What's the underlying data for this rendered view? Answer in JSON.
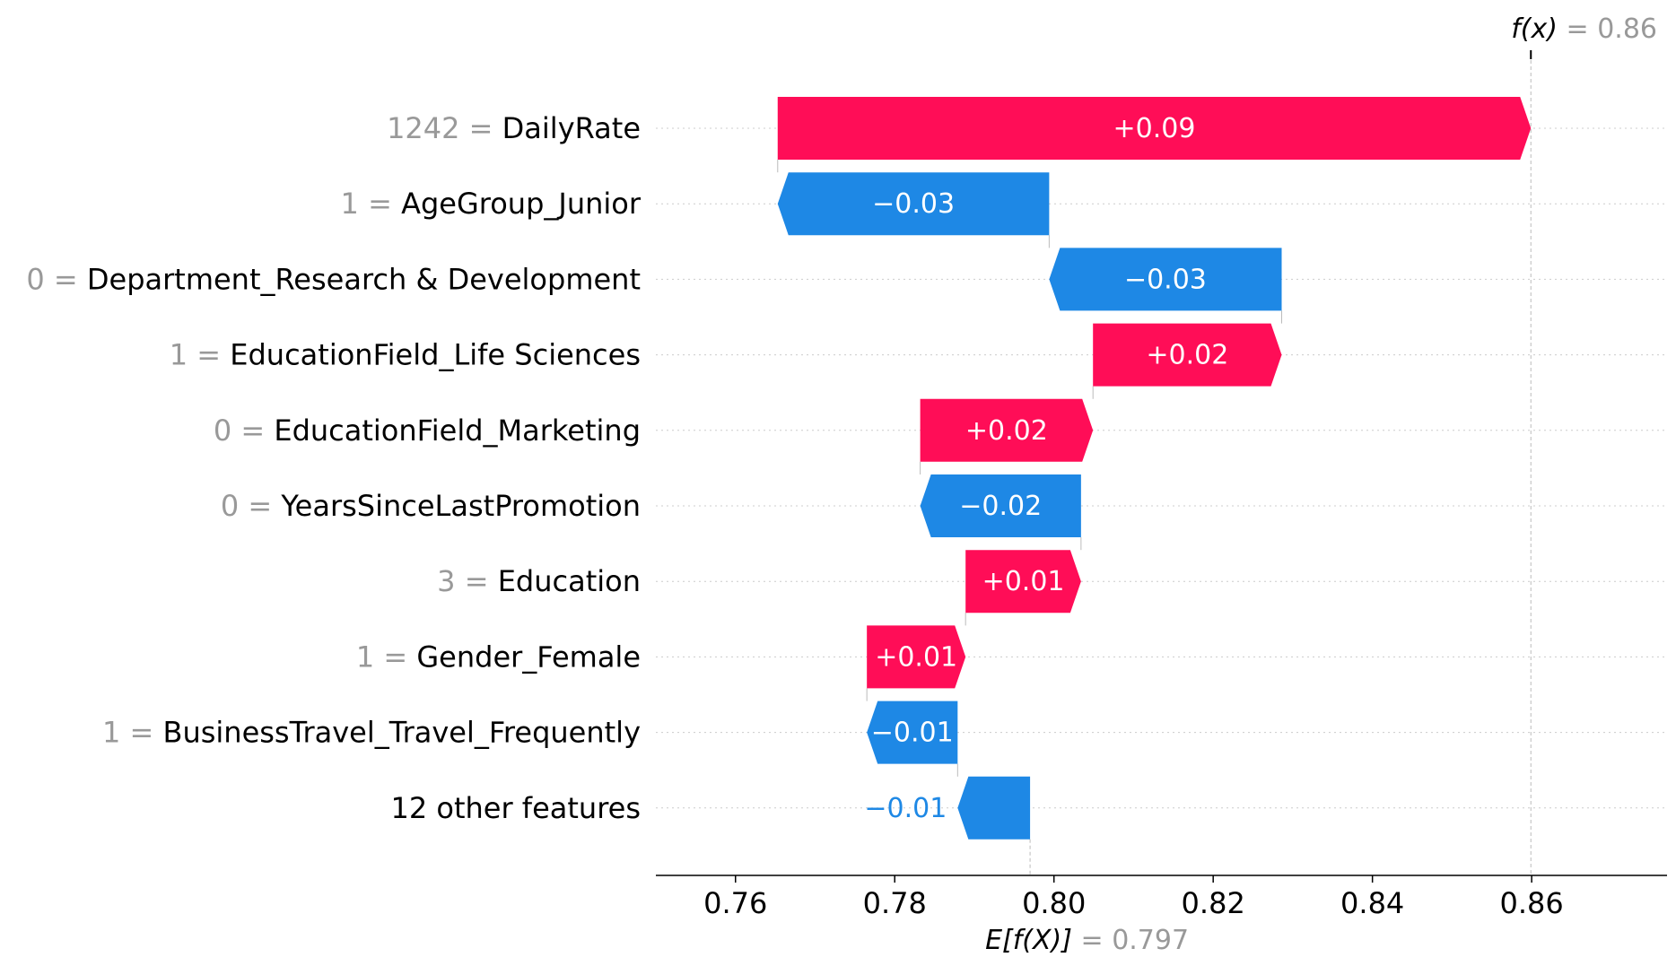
{
  "chart_data": {
    "type": "waterfall",
    "fx_label": "f(x)",
    "fx_value": "0.86",
    "efx_label": "E[f(X)]",
    "efx_value": "0.797",
    "base_value": 0.797,
    "xlim": [
      0.75,
      0.877
    ],
    "xticks": [
      0.76,
      0.78,
      0.8,
      0.82,
      0.84,
      0.86
    ],
    "xtick_labels": [
      "0.76",
      "0.78",
      "0.80",
      "0.82",
      "0.84",
      "0.86"
    ],
    "colors": {
      "positive": "#ff0d57",
      "negative": "#1e88e5",
      "value_label": "#999999"
    },
    "features": [
      {
        "value": "1242",
        "name": "DailyRate",
        "shap": 0.0946,
        "label": "+0.09"
      },
      {
        "value": "1",
        "name": "AgeGroup_Junior",
        "shap": -0.0341,
        "label": "−0.03"
      },
      {
        "value": "0",
        "name": "Department_Research & Development",
        "shap": -0.0292,
        "label": "−0.03"
      },
      {
        "value": "1",
        "name": "EducationField_Life Sciences",
        "shap": 0.0237,
        "label": "+0.02"
      },
      {
        "value": "0",
        "name": "EducationField_Marketing",
        "shap": 0.0217,
        "label": "+0.02"
      },
      {
        "value": "0",
        "name": "YearsSinceLastPromotion",
        "shap": -0.0202,
        "label": "−0.02"
      },
      {
        "value": "3",
        "name": "Education",
        "shap": 0.0145,
        "label": "+0.01"
      },
      {
        "value": "1",
        "name": "Gender_Female",
        "shap": 0.0124,
        "label": "+0.01"
      },
      {
        "value": "1",
        "name": "BusinessTravel_Travel_Frequently",
        "shap": -0.0114,
        "label": "−0.01"
      },
      {
        "value": "",
        "name": "12 other features",
        "shap": -0.0091,
        "label": "−0.01"
      }
    ]
  }
}
